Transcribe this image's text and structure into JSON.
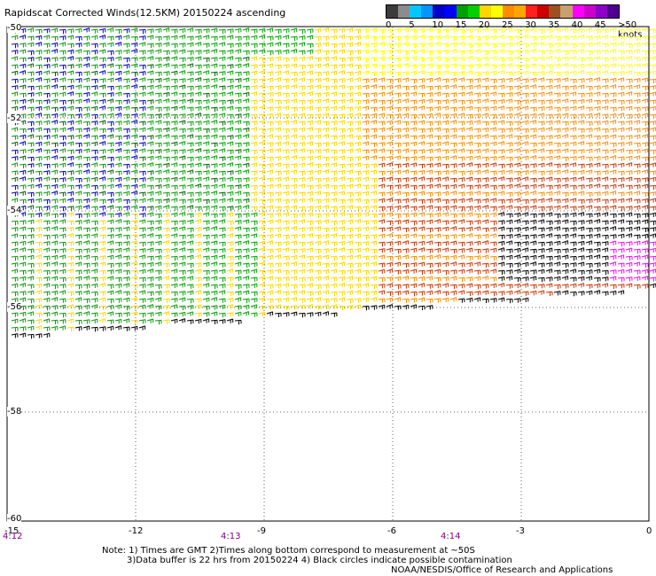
{
  "title": "Rapidscat Corrected Winds(12.5KM) 20150224 ascending",
  "legend": {
    "colors": [
      "#3c3c3c",
      "#8c8c8c",
      "#00c8ff",
      "#0096ff",
      "#0000c8",
      "#0000ff",
      "#00a000",
      "#00d000",
      "#ffd700",
      "#ffff00",
      "#ff8c00",
      "#ffa500",
      "#ff2020",
      "#cc0000",
      "#a05020",
      "#c8a070",
      "#ff00ff",
      "#cc00cc",
      "#8c00c8",
      "#500090"
    ],
    "labels": [
      "0",
      "5",
      "10",
      "15",
      "20",
      "25",
      "30",
      "35",
      "40",
      "45",
      ">50 knots"
    ]
  },
  "axes": {
    "x_ticks": [
      "-15",
      "-12",
      "-9",
      "-6",
      "-3",
      "0"
    ],
    "y_ticks": [
      "-50",
      "-52",
      "-54",
      "-56",
      "-58",
      "-60"
    ]
  },
  "times": [
    "4:12",
    "4:13",
    "4:14"
  ],
  "notes": {
    "line1": "Note: 1) Times are GMT 2)Times along bottom correspond to measurement at ~50S",
    "line2": "3)Data buffer is 22 hrs from 20150224 4) Black circles indicate possible contamination",
    "credit": "NOAA/NESDIS/Office of Research and Applications"
  },
  "wind_colors": {
    "blue": "#0000c8",
    "light_blue": "#0096ff",
    "green": "#00a000",
    "dark_green": "#006400",
    "yellow": "#ffd700",
    "light_yellow": "#ffff00",
    "orange": "#ff8c00",
    "red": "#cc3300",
    "black": "#000000",
    "magenta": "#ff00ff"
  }
}
